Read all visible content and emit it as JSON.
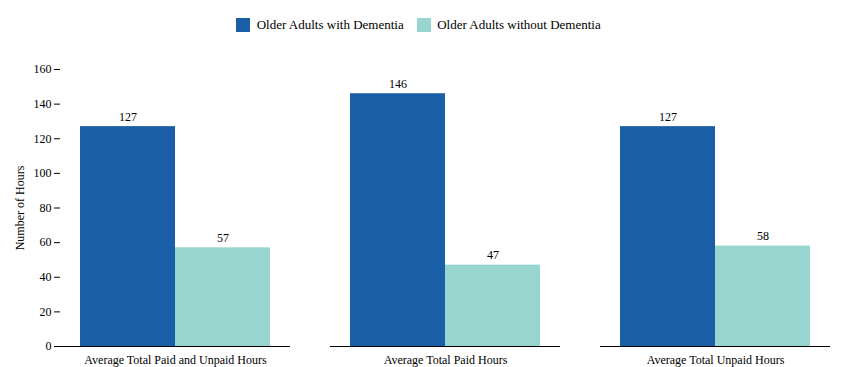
{
  "chart_data": {
    "type": "bar",
    "categories": [
      "Average Total Paid and Unpaid Hours",
      "Average Total Paid Hours",
      "Average Total Unpaid Hours"
    ],
    "series": [
      {
        "name": "Older Adults with Dementia",
        "color": "#1a5ea8",
        "values": [
          127,
          146,
          127
        ]
      },
      {
        "name": "Older Adults without Dementia",
        "color": "#99d5cf",
        "values": [
          57,
          47,
          58
        ]
      }
    ],
    "ylabel": "Number of Hours",
    "ylim": [
      0,
      160
    ],
    "yticks": [
      0,
      20,
      40,
      60,
      80,
      100,
      120,
      140,
      160
    ],
    "grid": false,
    "data_labels": true,
    "legend": "top"
  }
}
